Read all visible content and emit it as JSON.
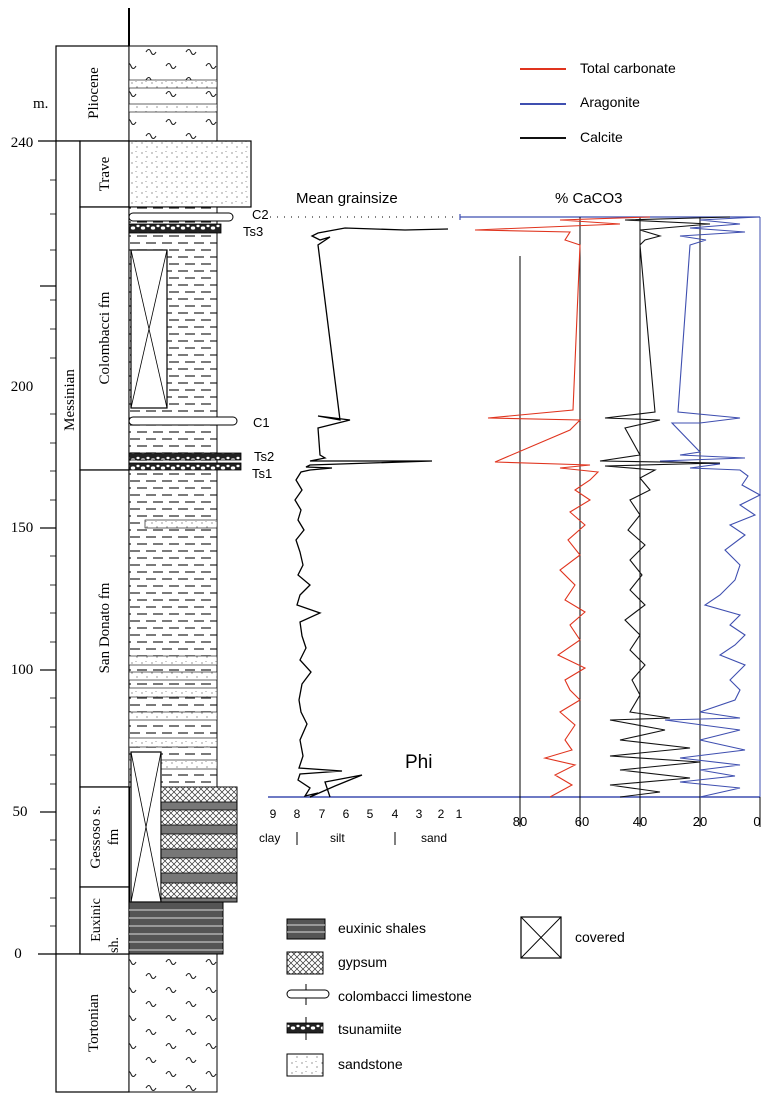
{
  "depth_axis": {
    "unit": "m.",
    "ticks": [
      "0",
      "50",
      "100",
      "150",
      "200",
      "240"
    ]
  },
  "periods": [
    "Pliocene",
    "Messinian",
    "Tortonian"
  ],
  "formations": [
    "Trave",
    "Colombacci fm",
    "San Donato fm",
    "Gessoso s. fm",
    "Euxinic sh."
  ],
  "markers": [
    "C2",
    "Ts3",
    "C1",
    "Ts2",
    "Ts1"
  ],
  "grainsize": {
    "title": "Mean grainsize",
    "unit_label": "Phi",
    "ticks": [
      "9",
      "8",
      "7",
      "6",
      "5",
      "4",
      "3",
      "2",
      "1"
    ],
    "classes": [
      "clay",
      "silt",
      "sand"
    ]
  },
  "carbonate": {
    "title": "% CaCO3",
    "ticks": [
      "80",
      "60",
      "40",
      "20",
      "0"
    ],
    "legend": [
      {
        "label": "Total carbonate",
        "color": "#e0341e"
      },
      {
        "label": "Aragonite",
        "color": "#3f4fb0"
      },
      {
        "label": "Calcite",
        "color": "#111111"
      }
    ]
  },
  "lithology_legend": [
    "euxinic shales",
    "gypsum",
    "colombacci limestone",
    "tsunamiite",
    "sandstone",
    "covered"
  ]
}
